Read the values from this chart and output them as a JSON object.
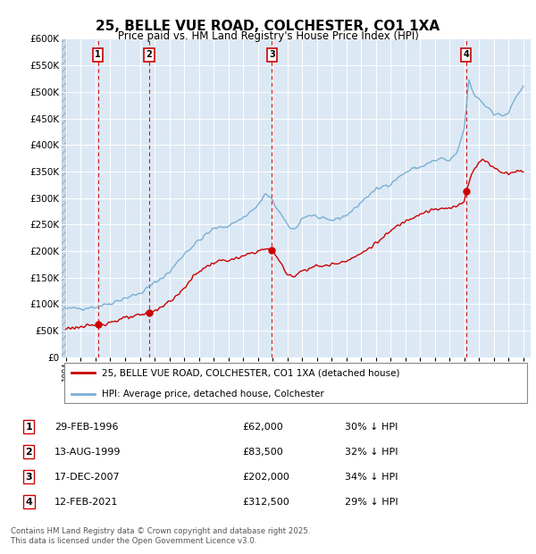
{
  "title": "25, BELLE VUE ROAD, COLCHESTER, CO1 1XA",
  "subtitle": "Price paid vs. HM Land Registry's House Price Index (HPI)",
  "bg_color": "#dce9f5",
  "hpi_color": "#7aafd4",
  "price_color": "#cc0000",
  "vline_color": "#cc0000",
  "ylim": [
    0,
    600000
  ],
  "yticks": [
    0,
    50000,
    100000,
    150000,
    200000,
    250000,
    300000,
    350000,
    400000,
    450000,
    500000,
    550000,
    600000
  ],
  "xlim_start": 1993.7,
  "xlim_end": 2025.5,
  "transactions": [
    {
      "num": 1,
      "date": "29-FEB-1996",
      "price": 62000,
      "pct": "30%",
      "x_year": 1996.16
    },
    {
      "num": 2,
      "date": "13-AUG-1999",
      "price": 83500,
      "pct": "32%",
      "x_year": 1999.62
    },
    {
      "num": 3,
      "date": "17-DEC-2007",
      "price": 202000,
      "pct": "34%",
      "x_year": 2007.96
    },
    {
      "num": 4,
      "date": "12-FEB-2021",
      "price": 312500,
      "pct": "29%",
      "x_year": 2021.12
    }
  ],
  "legend_line1": "25, BELLE VUE ROAD, COLCHESTER, CO1 1XA (detached house)",
  "legend_line2": "HPI: Average price, detached house, Colchester",
  "footer": "Contains HM Land Registry data © Crown copyright and database right 2025.\nThis data is licensed under the Open Government Licence v3.0."
}
